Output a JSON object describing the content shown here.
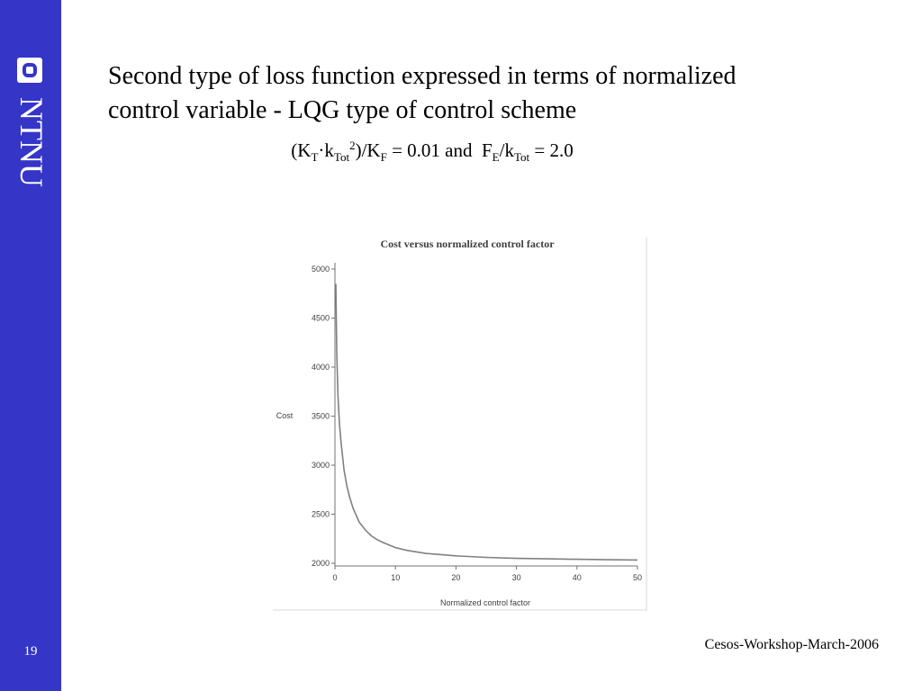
{
  "sidebar": {
    "brand": "NTNU",
    "slide_number": "19"
  },
  "title": {
    "line1": "Second type of loss function expressed in terms of normalized",
    "line2": "control variable - LQG type of control scheme"
  },
  "formula": {
    "open": "(K",
    "sub_t": "T",
    "dot": "·k",
    "sub_tot1": "Tot",
    "sup_2": "2",
    "mid": ")/K",
    "sub_f": "F",
    "eq1": " = 0.01 and  F",
    "sub_e": "E",
    "slash_k": "/k",
    "sub_tot2": "Tot",
    "eq2": " = 2.0"
  },
  "footer": {
    "text": "Cesos-Workshop-March-2006"
  },
  "chart_data": {
    "type": "line",
    "title": "Cost versus normalized control factor",
    "xlabel": "Normalized control factor",
    "ylabel": "Cost",
    "xlim": [
      0,
      50
    ],
    "ylim": [
      2000,
      5000
    ],
    "xticks": [
      0,
      10,
      20,
      30,
      40,
      50
    ],
    "yticks": [
      2000,
      2500,
      3000,
      3500,
      4000,
      4500,
      5000
    ],
    "grid": false,
    "legend": "none",
    "line_color": "#808080",
    "series": [
      {
        "x": [
          0.15,
          0.3,
          0.5,
          0.75,
          1,
          1.5,
          2,
          2.5,
          3,
          4,
          5,
          6,
          7,
          8,
          10,
          12,
          15,
          18,
          20,
          25,
          30,
          35,
          40,
          45,
          50
        ],
        "values": [
          4850,
          4150,
          3700,
          3420,
          3240,
          2950,
          2780,
          2660,
          2560,
          2420,
          2340,
          2280,
          2240,
          2210,
          2160,
          2130,
          2100,
          2085,
          2075,
          2060,
          2050,
          2045,
          2040,
          2036,
          2033
        ]
      }
    ]
  }
}
